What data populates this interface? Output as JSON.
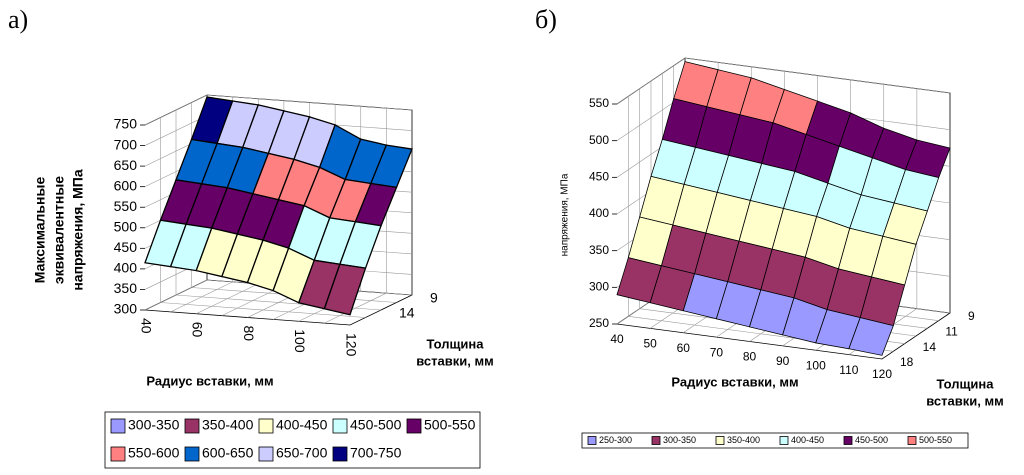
{
  "chart_data": [
    {
      "type": "surface",
      "panel_label": "а)",
      "x_label": "Радиус вставки, мм",
      "depth_label": [
        "Толщина",
        "вставки, мм"
      ],
      "z_label": [
        "Максимальные",
        "эквивалентные",
        "напряжения, МПа"
      ],
      "categories": [
        40,
        null,
        60,
        null,
        80,
        null,
        100,
        null,
        120
      ],
      "depth": [
        9,
        null,
        14,
        null,
        null
      ],
      "z": [
        [
          745,
          740,
          735,
          725,
          715,
          700,
          670,
          660,
          655
        ],
        [
          660,
          655,
          650,
          640,
          630,
          615,
          590,
          585,
          580
        ],
        [
          580,
          575,
          570,
          560,
          550,
          540,
          515,
          510,
          505
        ],
        [
          500,
          495,
          490,
          480,
          470,
          455,
          430,
          425,
          420
        ],
        [
          415,
          410,
          405,
          395,
          385,
          370,
          345,
          335,
          325
        ]
      ],
      "zlim": [
        300,
        750
      ],
      "zticks": [
        300,
        350,
        400,
        450,
        500,
        550,
        600,
        650,
        700,
        750
      ],
      "bands": [
        {
          "from": 300,
          "to": 350,
          "label": "300-350",
          "color": "#9999ff"
        },
        {
          "from": 350,
          "to": 400,
          "label": "350-400",
          "color": "#993366"
        },
        {
          "from": 400,
          "to": 450,
          "label": "400-450",
          "color": "#ffffcc"
        },
        {
          "from": 450,
          "to": 500,
          "label": "450-500",
          "color": "#ccffff"
        },
        {
          "from": 500,
          "to": 550,
          "label": "500-550",
          "color": "#660066"
        },
        {
          "from": 550,
          "to": 600,
          "label": "550-600",
          "color": "#ff8080"
        },
        {
          "from": 600,
          "to": 650,
          "label": "600-650",
          "color": "#0066cc"
        },
        {
          "from": 650,
          "to": 700,
          "label": "650-700",
          "color": "#ccccff"
        },
        {
          "from": 700,
          "to": 750,
          "label": "700-750",
          "color": "#000080"
        }
      ]
    },
    {
      "type": "surface",
      "panel_label": "б)",
      "x_label": "Радиус вставки, мм",
      "depth_label": [
        "Толщина",
        "вставки, мм"
      ],
      "z_label": [
        "напряжения, МПа"
      ],
      "categories": [
        40,
        50,
        60,
        70,
        80,
        90,
        100,
        110,
        120
      ],
      "depth": [
        9,
        null,
        11,
        null,
        14,
        null,
        18
      ],
      "z": [
        [
          545,
          540,
          535,
          525,
          515,
          505,
          490,
          480,
          475
        ],
        [
          505,
          500,
          495,
          490,
          480,
          470,
          460,
          450,
          445
        ],
        [
          460,
          455,
          450,
          445,
          440,
          430,
          420,
          415,
          410
        ],
        [
          420,
          415,
          410,
          405,
          400,
          395,
          385,
          380,
          375
        ],
        [
          375,
          370,
          365,
          360,
          355,
          350,
          340,
          335,
          330
        ],
        [
          330,
          325,
          320,
          315,
          310,
          305,
          295,
          290,
          285
        ],
        [
          290,
          285,
          280,
          275,
          270,
          265,
          260,
          258,
          255
        ]
      ],
      "zlim": [
        250,
        550
      ],
      "zticks": [
        250,
        300,
        350,
        400,
        450,
        500,
        550
      ],
      "bands": [
        {
          "from": 250,
          "to": 300,
          "label": "250-300",
          "color": "#9999ff"
        },
        {
          "from": 300,
          "to": 350,
          "label": "300-350",
          "color": "#993366"
        },
        {
          "from": 350,
          "to": 400,
          "label": "350-400",
          "color": "#ffffcc"
        },
        {
          "from": 400,
          "to": 450,
          "label": "400-450",
          "color": "#ccffff"
        },
        {
          "from": 450,
          "to": 500,
          "label": "450-500",
          "color": "#660066"
        },
        {
          "from": 500,
          "to": 550,
          "label": "500-550",
          "color": "#ff8080"
        }
      ]
    }
  ]
}
